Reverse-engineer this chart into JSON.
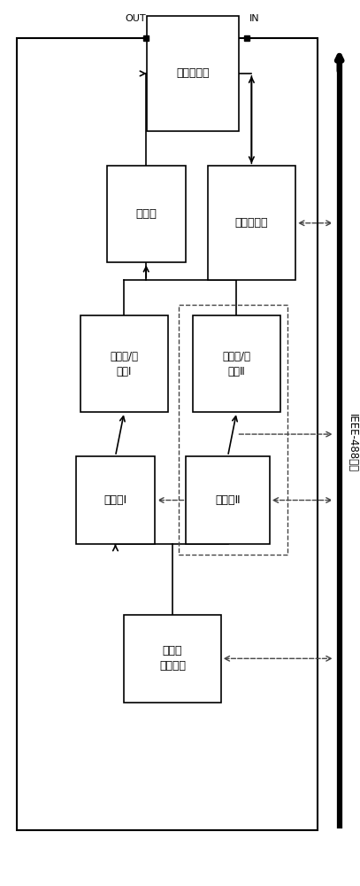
{
  "bg_color": "#ffffff",
  "border_color": "#000000",
  "box_color": "#ffffff",
  "text_color": "#000000",
  "dashed_color": "#444444",
  "ieee_label": "IEEE-488总线",
  "out_label": "OUT",
  "in_label": "IN",
  "receiver_label": "被测接收机",
  "combiner_label": "合路器",
  "audio_label": "音频分析仪",
  "filter1_label": "滤波器/衰\n减器Ⅰ",
  "filter2_label": "滤波器/衰\n减器Ⅱ",
  "source1_label": "信号源Ⅰ",
  "source2_label": "信号源Ⅱ",
  "sync_label": "信号源\n联控电路"
}
